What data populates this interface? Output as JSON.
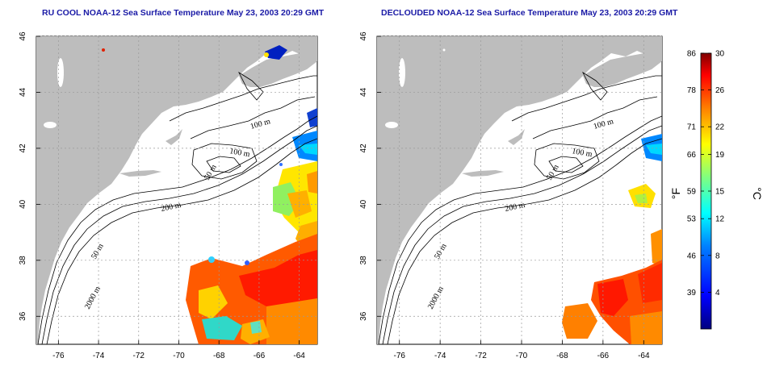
{
  "titles": {
    "left": "RU COOL NOAA-12 Sea Surface Temperature May 23, 2003 20:29 GMT",
    "right": "DECLOUDED NOAA-12 Sea Surface Temperature May 23, 2003 20:29 GMT"
  },
  "axes": {
    "lon_ticks": [
      "-76",
      "-74",
      "-72",
      "-70",
      "-68",
      "-66",
      "-64"
    ],
    "lat_ticks": [
      "46",
      "44",
      "42",
      "40",
      "38",
      "36"
    ],
    "lon_range": [
      -77.1,
      -63.1
    ],
    "lat_range": [
      35,
      46
    ]
  },
  "contour_labels": [
    "100 m",
    "100 m",
    "50 m",
    "200 m",
    "50 m",
    "2000 m"
  ],
  "colorbar": {
    "fahrenheit_ticks": [
      "86",
      "78",
      "71",
      "66",
      "59",
      "53",
      "46",
      "39"
    ],
    "celsius_ticks": [
      "30",
      "26",
      "22",
      "19",
      "15",
      "12",
      "8",
      "4"
    ],
    "fahrenheit_unit": "°F",
    "celsius_unit": "°C",
    "celsius_range": [
      0,
      30
    ]
  },
  "colors": {
    "land": "#bdbdbd",
    "ocean": "#ffffff",
    "title": "#1a1aa6",
    "grid": "#9a9a9a",
    "colormap": [
      "#000080",
      "#0000ff",
      "#0080ff",
      "#00ffff",
      "#80ff80",
      "#ffff00",
      "#ff8000",
      "#ff0000",
      "#800000"
    ]
  }
}
